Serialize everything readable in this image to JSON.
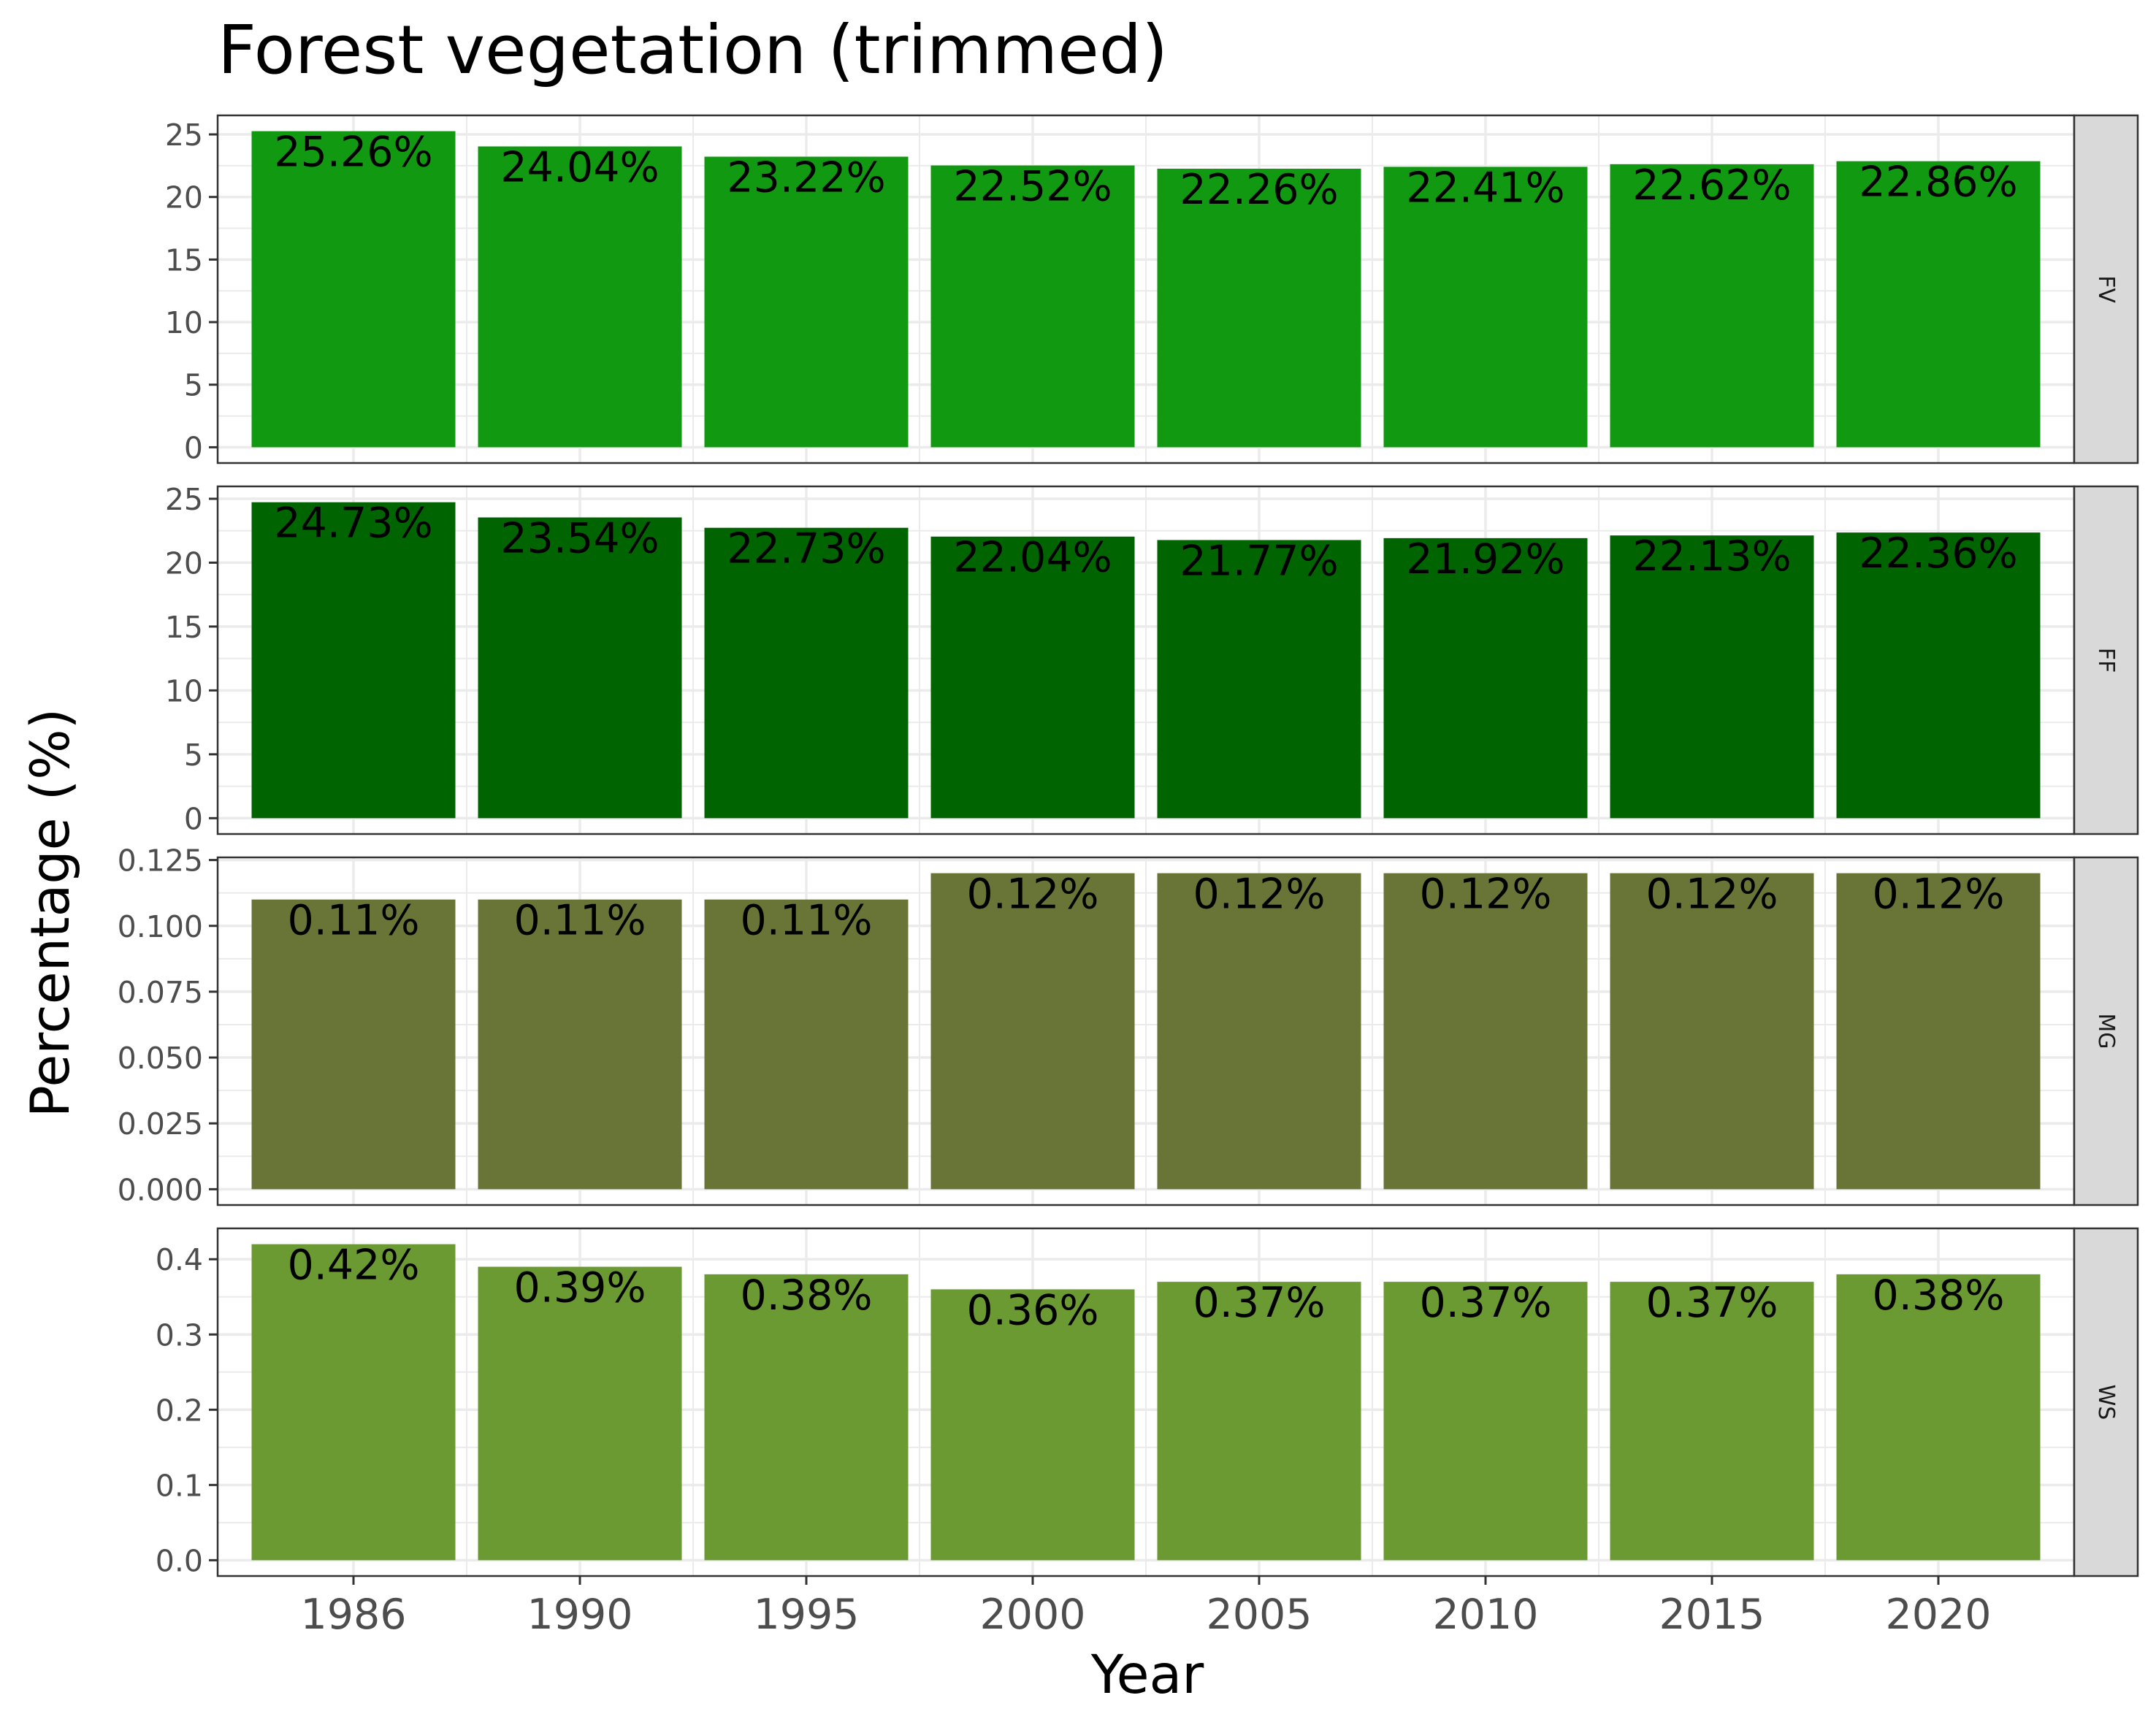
{
  "chart_data": {
    "type": "bar",
    "title": "Forest vegetation (trimmed)",
    "xlabel": "Year",
    "ylabel": "Percentage (%)",
    "categories": [
      "1986",
      "1990",
      "1995",
      "2000",
      "2005",
      "2010",
      "2015",
      "2020"
    ],
    "grid": true,
    "facets": [
      {
        "name": "FV",
        "color": "#119911",
        "values": [
          25.26,
          24.04,
          23.22,
          22.52,
          22.26,
          22.41,
          22.62,
          22.86
        ],
        "labels": [
          "25.26%",
          "24.04%",
          "23.22%",
          "22.52%",
          "22.26%",
          "22.41%",
          "22.62%",
          "22.86%"
        ],
        "ylim": [
          -1.26,
          26.52
        ],
        "yticks": [
          0,
          5,
          10,
          15,
          20,
          25
        ],
        "ytick_labels": [
          "0",
          "5",
          "10",
          "15",
          "20",
          "25"
        ]
      },
      {
        "name": "FF",
        "color": "#006400",
        "values": [
          24.73,
          23.54,
          22.73,
          22.04,
          21.77,
          21.92,
          22.13,
          22.36
        ],
        "labels": [
          "24.73%",
          "23.54%",
          "22.73%",
          "22.04%",
          "21.77%",
          "21.92%",
          "22.13%",
          "22.36%"
        ],
        "ylim": [
          -1.24,
          25.97
        ],
        "yticks": [
          0,
          5,
          10,
          15,
          20,
          25
        ],
        "ytick_labels": [
          "0",
          "5",
          "10",
          "15",
          "20",
          "25"
        ]
      },
      {
        "name": "MG",
        "color": "#687537",
        "values": [
          0.11,
          0.11,
          0.11,
          0.12,
          0.12,
          0.12,
          0.12,
          0.12
        ],
        "labels": [
          "0.11%",
          "0.11%",
          "0.11%",
          "0.12%",
          "0.12%",
          "0.12%",
          "0.12%",
          "0.12%"
        ],
        "ylim": [
          -0.006,
          0.126
        ],
        "yticks": [
          0,
          0.025,
          0.05,
          0.075,
          0.1,
          0.125
        ],
        "ytick_labels": [
          "0.000",
          "0.025",
          "0.050",
          "0.075",
          "0.100",
          "0.125"
        ]
      },
      {
        "name": "WS",
        "color": "#6b9a33",
        "values": [
          0.42,
          0.39,
          0.38,
          0.36,
          0.37,
          0.37,
          0.37,
          0.38
        ],
        "labels": [
          "0.42%",
          "0.39%",
          "0.38%",
          "0.36%",
          "0.37%",
          "0.37%",
          "0.37%",
          "0.38%"
        ],
        "ylim": [
          -0.021,
          0.441
        ],
        "yticks": [
          0,
          0.1,
          0.2,
          0.3,
          0.4
        ],
        "ytick_labels": [
          "0.0",
          "0.1",
          "0.2",
          "0.3",
          "0.4"
        ]
      }
    ]
  }
}
